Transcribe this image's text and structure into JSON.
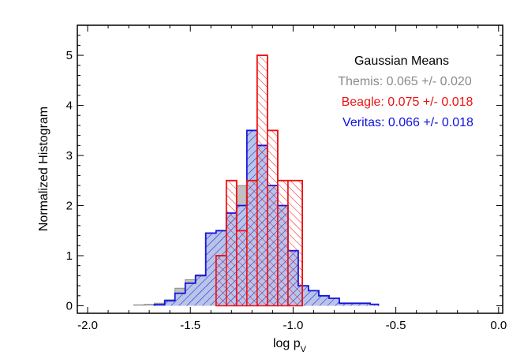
{
  "chart_data": {
    "type": "histogram",
    "xlabel": "log p",
    "xlabel_subscript": "V",
    "ylabel": "Normalized Histogram",
    "xlim": [
      -2.05,
      0.02
    ],
    "ylim": [
      -0.15,
      5.6
    ],
    "x_ticks": [
      {
        "value": -2.0,
        "label": "-2.0"
      },
      {
        "value": -1.5,
        "label": "-1.5"
      },
      {
        "value": -1.0,
        "label": "-1.0"
      },
      {
        "value": -0.5,
        "label": "-0.5"
      },
      {
        "value": 0.0,
        "label": "0.0"
      }
    ],
    "y_ticks": [
      {
        "value": 0,
        "label": "0"
      },
      {
        "value": 1,
        "label": "1"
      },
      {
        "value": 2,
        "label": "2"
      },
      {
        "value": 3,
        "label": "3"
      },
      {
        "value": 4,
        "label": "4"
      },
      {
        "value": 5,
        "label": "5"
      }
    ],
    "grid": false,
    "legend": {
      "title": "Gaussian Means",
      "placement": "top-right",
      "entries": [
        {
          "text": "Themis: 0.065 +/- 0.020",
          "color": "#8a8a8a"
        },
        {
          "text": "Beagle: 0.075 +/- 0.018",
          "color": "#ee1111"
        },
        {
          "text": "Veritas: 0.066 +/- 0.018",
          "color": "#1111dd"
        }
      ]
    },
    "series": [
      {
        "name": "Themis",
        "color": "#8a8a8a",
        "fill": "#c0c0c0",
        "style": "solid",
        "bins": [
          [
            -1.775,
            -1.725,
            0.02
          ],
          [
            -1.725,
            -1.675,
            0.03
          ],
          [
            -1.675,
            -1.625,
            0.05
          ],
          [
            -1.625,
            -1.575,
            0.12
          ],
          [
            -1.575,
            -1.525,
            0.35
          ],
          [
            -1.525,
            -1.475,
            0.52
          ],
          [
            -1.475,
            -1.425,
            0.62
          ],
          [
            -1.425,
            -1.375,
            1.0
          ],
          [
            -1.375,
            -1.325,
            1.5
          ],
          [
            -1.325,
            -1.275,
            1.8
          ],
          [
            -1.275,
            -1.225,
            2.4
          ],
          [
            -1.225,
            -1.175,
            2.62
          ],
          [
            -1.175,
            -1.125,
            2.62
          ],
          [
            -1.125,
            -1.075,
            2.2
          ],
          [
            -1.075,
            -1.025,
            1.6
          ],
          [
            -1.025,
            -0.975,
            0.8
          ],
          [
            -0.975,
            -0.925,
            0.35
          ],
          [
            -0.925,
            -0.875,
            0.2
          ],
          [
            -0.875,
            -0.825,
            0.1
          ],
          [
            -0.825,
            -0.775,
            0.05
          ],
          [
            -0.775,
            -0.725,
            0.03
          ],
          [
            -0.725,
            -0.675,
            0.02
          ]
        ]
      },
      {
        "name": "Veritas",
        "color": "#1111dd",
        "fill": "#b8c4e8",
        "style": "hatched",
        "bins": [
          [
            -1.675,
            -1.625,
            0.02
          ],
          [
            -1.625,
            -1.575,
            0.1
          ],
          [
            -1.575,
            -1.525,
            0.25
          ],
          [
            -1.525,
            -1.475,
            0.45
          ],
          [
            -1.475,
            -1.425,
            0.6
          ],
          [
            -1.425,
            -1.375,
            1.45
          ],
          [
            -1.375,
            -1.325,
            1.5
          ],
          [
            -1.325,
            -1.275,
            1.85
          ],
          [
            -1.275,
            -1.225,
            2.0
          ],
          [
            -1.225,
            -1.175,
            3.5
          ],
          [
            -1.175,
            -1.125,
            3.2
          ],
          [
            -1.125,
            -1.075,
            2.4
          ],
          [
            -1.075,
            -1.025,
            2.0
          ],
          [
            -1.025,
            -0.975,
            1.1
          ],
          [
            -0.975,
            -0.925,
            0.4
          ],
          [
            -0.925,
            -0.875,
            0.3
          ],
          [
            -0.875,
            -0.825,
            0.2
          ],
          [
            -0.825,
            -0.775,
            0.15
          ],
          [
            -0.775,
            -0.725,
            0.05
          ],
          [
            -0.725,
            -0.675,
            0.05
          ],
          [
            -0.675,
            -0.625,
            0.05
          ],
          [
            -0.625,
            -0.585,
            0.03
          ]
        ]
      },
      {
        "name": "Beagle",
        "color": "#ee1111",
        "fill": "none",
        "style": "hatched-outline",
        "bins": [
          [
            -1.375,
            -1.325,
            1.0
          ],
          [
            -1.325,
            -1.275,
            2.5
          ],
          [
            -1.275,
            -1.225,
            1.5
          ],
          [
            -1.225,
            -1.175,
            2.5
          ],
          [
            -1.175,
            -1.125,
            5.0
          ],
          [
            -1.125,
            -1.075,
            3.5
          ],
          [
            -1.075,
            -1.025,
            2.5
          ],
          [
            -1.025,
            -0.955,
            2.5
          ]
        ]
      }
    ]
  }
}
